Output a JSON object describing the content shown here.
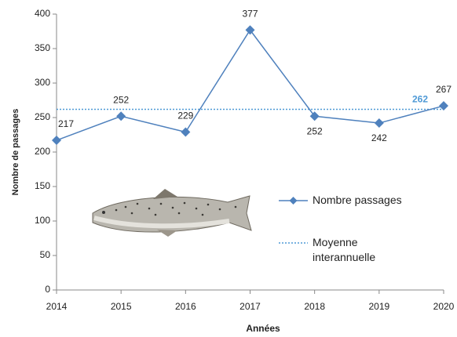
{
  "chart_data": {
    "type": "line",
    "x_label": "Années",
    "y_label": "Nombre de passages",
    "x": [
      2014,
      2015,
      2016,
      2017,
      2018,
      2019,
      2020
    ],
    "series": [
      {
        "name": "Nombre passages",
        "color": "#4f81bd",
        "values": [
          217,
          252,
          229,
          377,
          252,
          242,
          267
        ]
      }
    ],
    "reference_line": {
      "name": "Moyenne interannuelle",
      "value": 262,
      "color": "#4f9ad6"
    },
    "xlim": [
      2014,
      2020
    ],
    "xticks": [
      2014,
      2015,
      2016,
      2017,
      2018,
      2019,
      2020
    ],
    "ylim": [
      0,
      400
    ],
    "yticks": [
      0,
      50,
      100,
      150,
      200,
      250,
      300,
      350,
      400
    ],
    "grid": false
  }
}
